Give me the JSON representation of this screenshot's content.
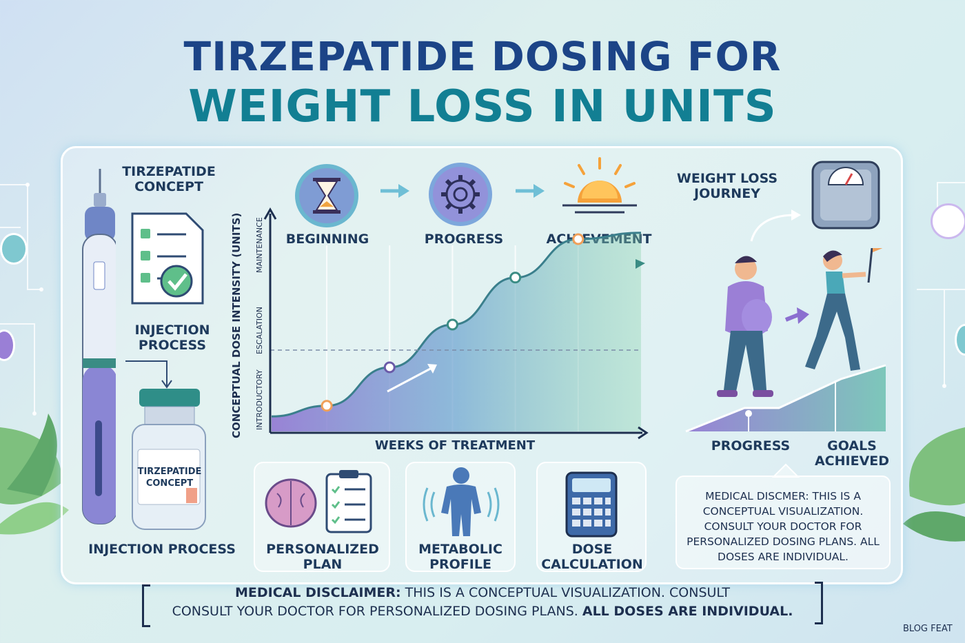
{
  "title": {
    "line1": "TIRZEPATIDE DOSING FOR",
    "line2": "WEIGHT LOSS IN UNITS"
  },
  "left": {
    "concept_label": "TIRZEPATIDE CONCEPT",
    "injection_label": "INJECTION PROCESS",
    "vial_label": "TIRZEPATIDE CONCEPT",
    "bottom_label": "INJECTION PROCESS"
  },
  "stages": [
    "BEGINNING",
    "PROGRESS",
    "ACHIEVEMENT"
  ],
  "chart_data": {
    "type": "line",
    "xlabel": "WEEKS OF TREATMENT",
    "ylabel": "CONCEPTUAL DOSE INTENSITY (UNITS)",
    "y_bands": [
      "INTRODUCTORY",
      "ESCALATION",
      "MAINTENANCE"
    ],
    "x": [
      1,
      2,
      3,
      4,
      5
    ],
    "series": [
      {
        "values": [
          0.12,
          0.3,
          0.5,
          0.72,
          0.9
        ]
      }
    ],
    "ylim": [
      0,
      1
    ],
    "grid": true
  },
  "cards": [
    {
      "line1": "PERSONALIZED",
      "line2": "PLAN"
    },
    {
      "line1": "METABOLIC",
      "line2": "PROFILE"
    },
    {
      "line1": "DOSE",
      "line2": "CALCULATION"
    }
  ],
  "journey": {
    "title_line1": "WEIGHT LOSS",
    "title_line2": "JOURNEY",
    "progress": "PROGRESS",
    "goals_line1": "GOALS",
    "goals_line2": "ACHIEVED"
  },
  "medical_box": "MEDICAL DISCMER: THIS IS A CONCEPTUAL VISUALIZATION. CONSULT YOUR DOCTOR FOR PERSONALIZED DOSING PLANS. ALL DOSES ARE INDIVIDUAL.",
  "disclaimer": {
    "bold1": "MEDICAL DISCLAIMER:",
    "text1": " THIS IS A CONCEPTUAL VISUALIZATION. CONSULT",
    "text2": "CONSULT YOUR DOCTOR FOR PERSONALIZED DOSING PLANS. ",
    "bold2": "ALL DOSES ARE INDIVIDUAL."
  },
  "corner": "BLOG FEAT",
  "colors": {
    "navy": "#1c4487",
    "teal": "#127f93",
    "purple": "#8b6fd0",
    "green": "#5dbf9a"
  }
}
